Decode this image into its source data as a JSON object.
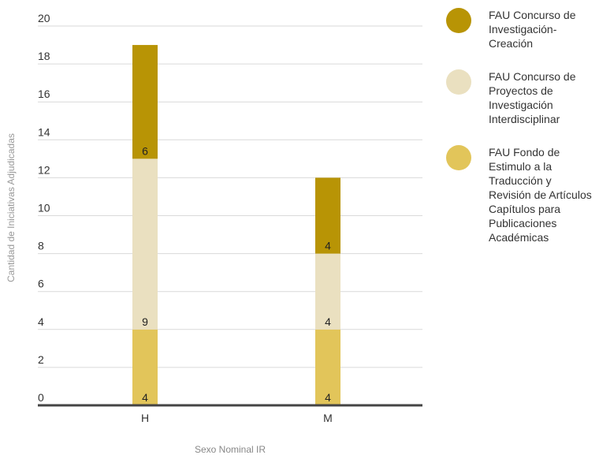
{
  "chart_data": {
    "type": "bar",
    "stacked": true,
    "title": "",
    "xlabel": "Sexo Nominal IR",
    "ylabel": "Cantidad de Iniciativas Adjudicadas",
    "categories": [
      "H",
      "M"
    ],
    "ylim": [
      0,
      20
    ],
    "yticks": [
      "0",
      "2",
      "4",
      "6",
      "8",
      "10",
      "12",
      "14",
      "16",
      "18",
      "20"
    ],
    "grid": true,
    "legend_position": "right",
    "series": [
      {
        "name": "FAU Fondo de Estimulo a la Traducción y Revisión de Artículos Capítulos para Publicaciones Académicas",
        "legend_lines": "FAU Fondo de\nEstimulo a la\nTraducción y\nRevisión de Artículos\nCapítulos para\nPublicaciones\nAcadémicas",
        "values": [
          4,
          4
        ],
        "labels": [
          "4",
          "4"
        ],
        "color": "#E2C55A"
      },
      {
        "name": "FAU Concurso de Proyectos de Investigación Interdisciplinar",
        "legend_lines": "FAU Concurso de\nProyectos de\nInvestigación\nInterdisciplinar",
        "values": [
          9,
          4
        ],
        "labels": [
          "9",
          "4"
        ],
        "color": "#EAE0C0"
      },
      {
        "name": "FAU Concurso de Investigación-Creación",
        "legend_lines": "FAU Concurso de\nInvestigación-\nCreación",
        "values": [
          6,
          4
        ],
        "labels": [
          "6",
          "4"
        ],
        "color": "#B89405"
      }
    ],
    "legend_order": [
      2,
      1,
      0
    ]
  }
}
